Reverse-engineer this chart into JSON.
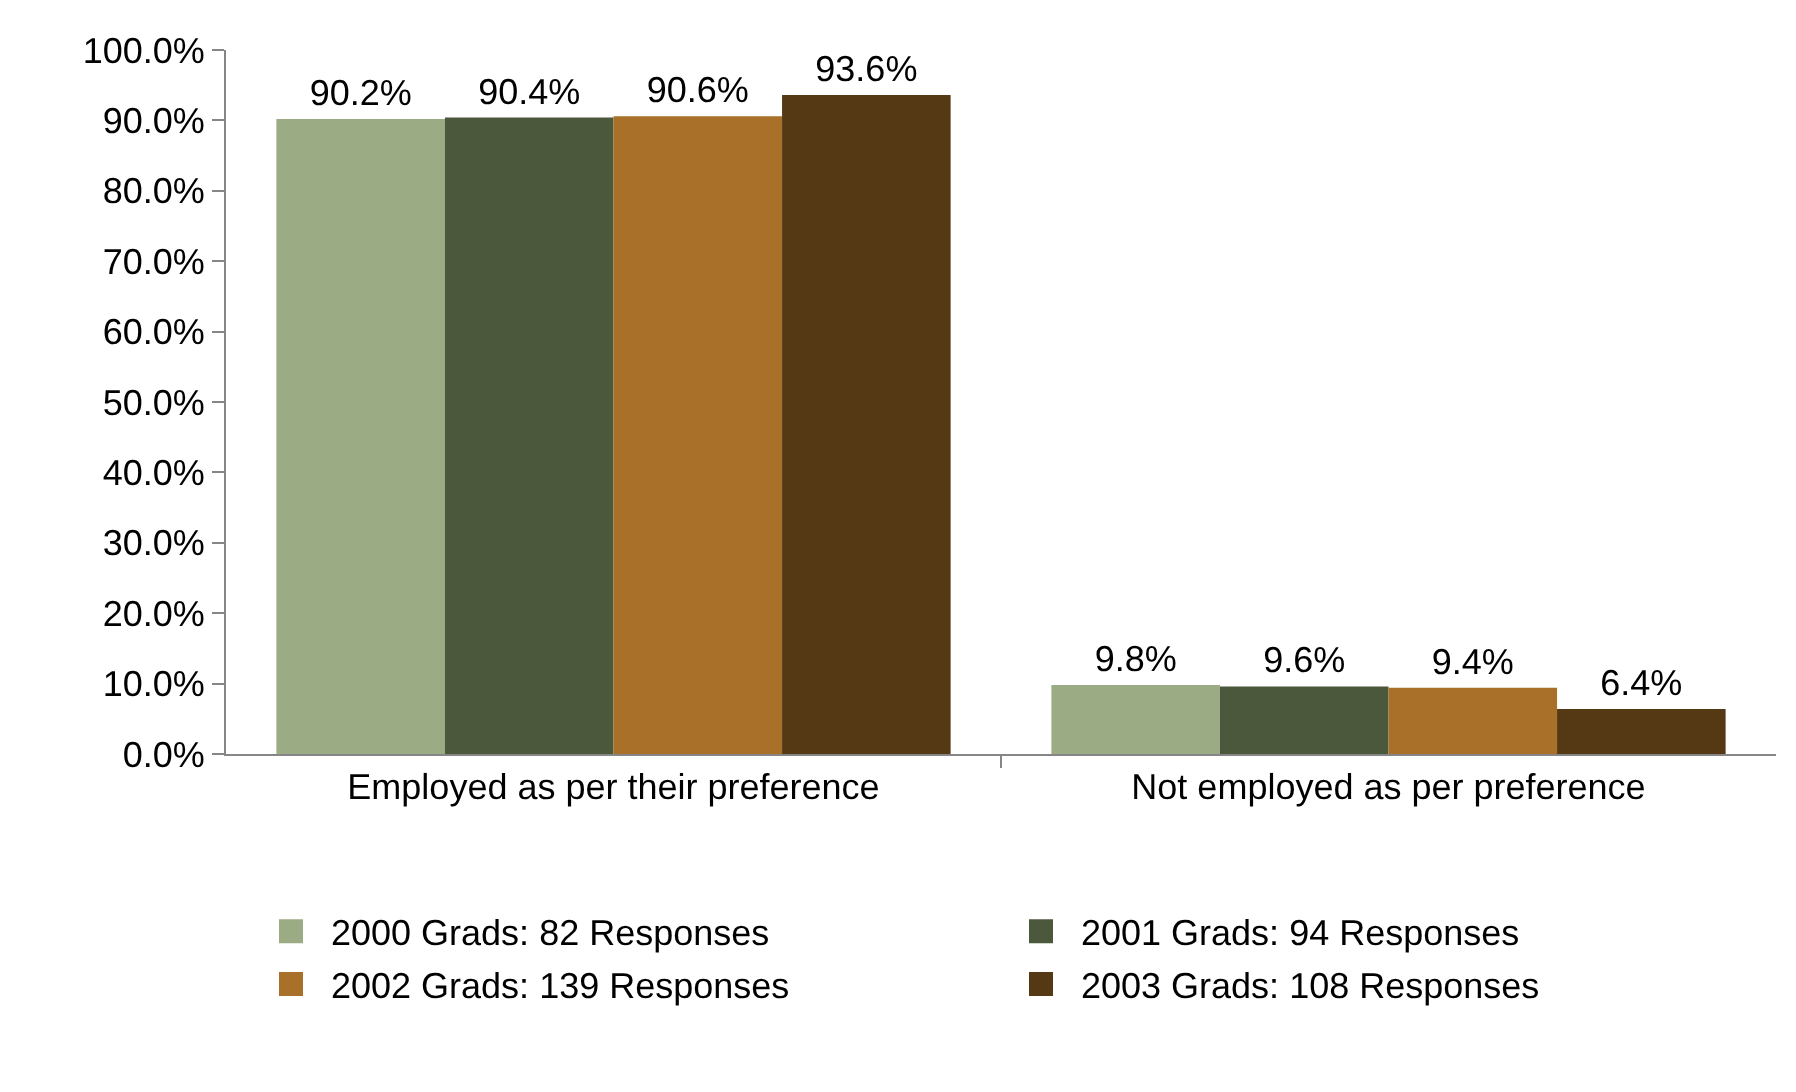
{
  "chart_data": {
    "type": "bar",
    "categories": [
      "Employed as per their preference",
      "Not employed as per preference"
    ],
    "series": [
      {
        "name": "2000 Grads: 82 Responses",
        "color": "#9bab83",
        "values": [
          90.2,
          9.8
        ],
        "value_labels": [
          "90.2%",
          "9.8%"
        ]
      },
      {
        "name": "2001 Grads: 94 Responses",
        "color": "#4b583b",
        "values": [
          90.4,
          9.6
        ],
        "value_labels": [
          "90.4%",
          "9.6%"
        ]
      },
      {
        "name": "2002 Grads: 139 Responses",
        "color": "#a87029",
        "values": [
          90.6,
          9.4
        ],
        "value_labels": [
          "90.6%",
          "9.4%"
        ]
      },
      {
        "name": "2003 Grads: 108 Responses",
        "color": "#553814",
        "values": [
          93.6,
          6.4
        ],
        "value_labels": [
          "93.6%",
          "6.4%"
        ]
      }
    ],
    "ylim": [
      0,
      100
    ],
    "yticks": [
      {
        "value": 0,
        "label": "0.0%"
      },
      {
        "value": 10,
        "label": "10.0%"
      },
      {
        "value": 20,
        "label": "20.0%"
      },
      {
        "value": 30,
        "label": "30.0%"
      },
      {
        "value": 40,
        "label": "40.0%"
      },
      {
        "value": 50,
        "label": "50.0%"
      },
      {
        "value": 60,
        "label": "60.0%"
      },
      {
        "value": 70,
        "label": "70.0%"
      },
      {
        "value": 80,
        "label": "80.0%"
      },
      {
        "value": 90,
        "label": "90.0%"
      },
      {
        "value": 100,
        "label": "100.0%"
      }
    ],
    "grid": false,
    "legend": "bottom"
  }
}
